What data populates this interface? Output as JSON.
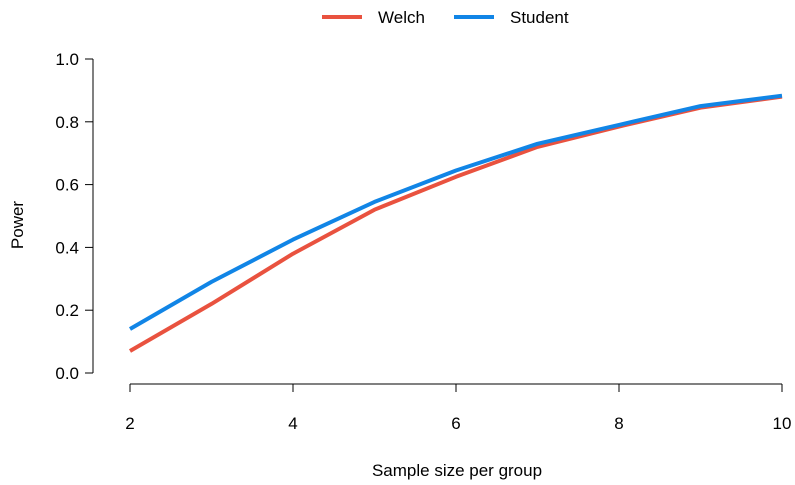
{
  "chart_data": {
    "type": "line",
    "xlabel": "Sample size per group",
    "ylabel": "Power",
    "xlim": [
      2,
      10
    ],
    "ylim": [
      0,
      1
    ],
    "x_ticks": [
      "2",
      "4",
      "6",
      "8",
      "10"
    ],
    "y_ticks": [
      "0.0",
      "0.2",
      "0.4",
      "0.6",
      "0.8",
      "1.0"
    ],
    "grid": false,
    "legend_position": "top-center",
    "x": [
      2,
      3,
      4,
      5,
      6,
      7,
      8,
      9,
      10
    ],
    "series": [
      {
        "name": "Welch",
        "color": "#E9523F",
        "values": [
          0.07,
          0.22,
          0.38,
          0.52,
          0.625,
          0.72,
          0.785,
          0.845,
          0.88
        ]
      },
      {
        "name": "Student",
        "color": "#1185E6",
        "values": [
          0.14,
          0.29,
          0.425,
          0.545,
          0.645,
          0.73,
          0.79,
          0.85,
          0.883
        ]
      }
    ]
  }
}
